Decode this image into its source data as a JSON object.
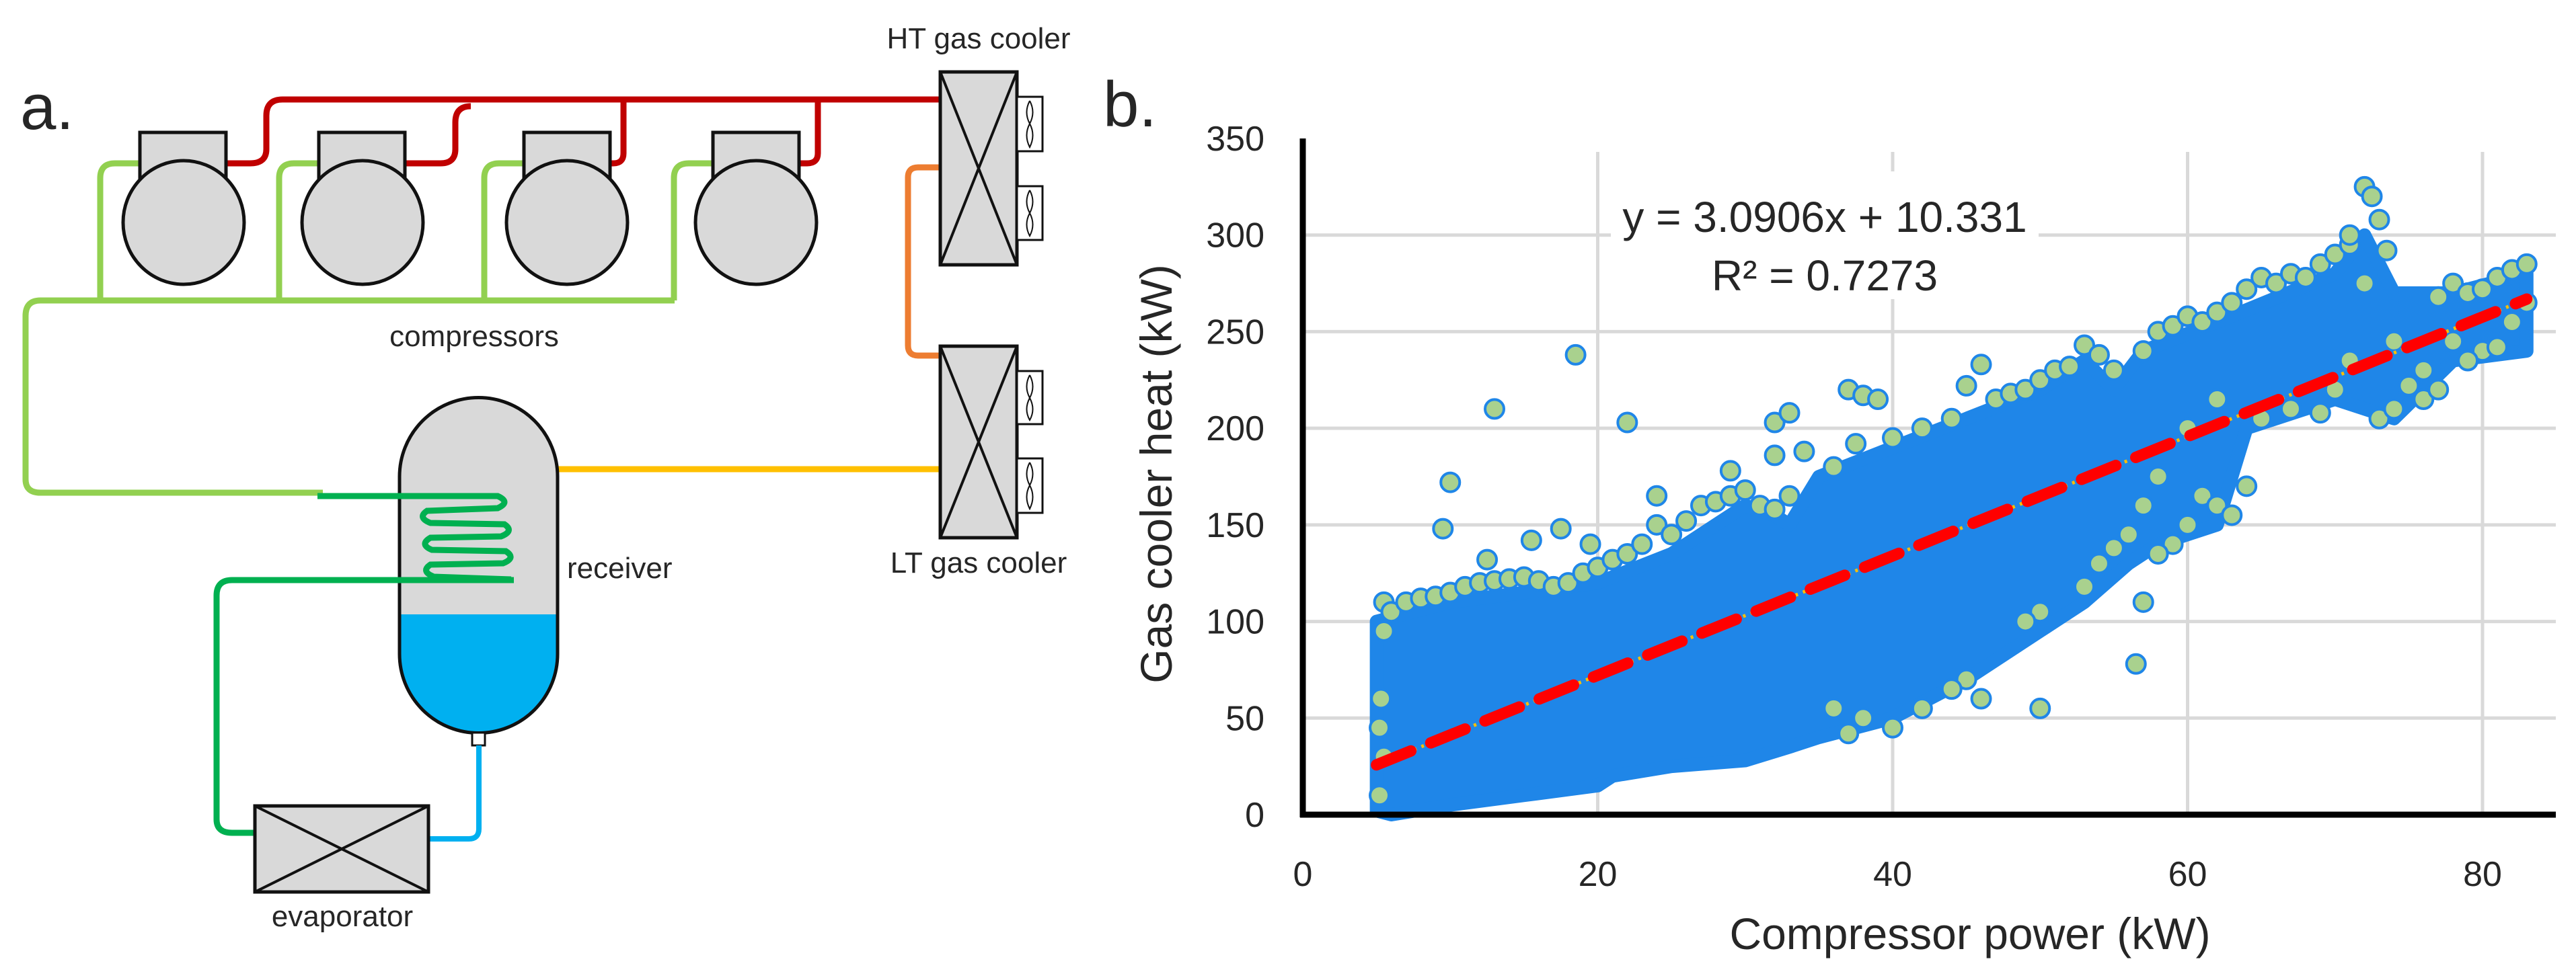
{
  "panel_a": {
    "label": "a.",
    "labels": {
      "ht_gas_cooler": "HT gas cooler",
      "lt_gas_cooler": "LT gas cooler",
      "compressors": "compressors",
      "receiver": "receiver",
      "evaporator": "evaporator"
    },
    "colors": {
      "discharge": "#c00000",
      "suction": "#92d050",
      "internal_hx": "#00b050",
      "intermediate": "#ed7d31",
      "gas_cooler_outlet": "#ffc000",
      "liquid": "#00b0f0",
      "component_fill": "#d9d9d9"
    }
  },
  "panel_b": {
    "label": "b."
  },
  "chart_data": {
    "type": "scatter",
    "xlabel": "Compressor power (kW)",
    "ylabel": "Gas cooler heat (kW)",
    "xlim": [
      0,
      85
    ],
    "ylim": [
      0,
      350
    ],
    "xticks": [
      "0",
      "20",
      "40",
      "60",
      "80"
    ],
    "xtick_values": [
      0,
      20,
      40,
      60,
      80
    ],
    "yticks": [
      "0",
      "50",
      "100",
      "150",
      "200",
      "250",
      "300",
      "350"
    ],
    "ytick_values": [
      0,
      50,
      100,
      150,
      200,
      250,
      300,
      350
    ],
    "grid": true,
    "marker_fill": "#a9d18e",
    "marker_edge": "#1f86e8",
    "trendline": {
      "equation": "y = 3.0906x + 10.331",
      "r_squared": "R² = 0.7273",
      "slope": 3.0906,
      "intercept": 10.331,
      "x_range": [
        5,
        83
      ],
      "color": "#ff0000",
      "dotted_color": "#ffc000"
    },
    "dense_cloud_outline": [
      [
        5,
        2
      ],
      [
        5,
        100
      ],
      [
        10,
        110
      ],
      [
        20,
        120
      ],
      [
        25,
        135
      ],
      [
        30,
        160
      ],
      [
        32,
        155
      ],
      [
        33,
        150
      ],
      [
        35,
        175
      ],
      [
        40,
        190
      ],
      [
        45,
        205
      ],
      [
        50,
        220
      ],
      [
        53,
        235
      ],
      [
        55,
        220
      ],
      [
        57,
        240
      ],
      [
        62,
        255
      ],
      [
        70,
        280
      ],
      [
        72,
        300
      ],
      [
        74,
        270
      ],
      [
        78,
        270
      ],
      [
        83,
        280
      ],
      [
        83,
        240
      ],
      [
        78,
        235
      ],
      [
        74,
        205
      ],
      [
        70,
        215
      ],
      [
        64,
        200
      ],
      [
        62,
        150
      ],
      [
        58,
        140
      ],
      [
        56,
        130
      ],
      [
        53,
        110
      ],
      [
        50,
        95
      ],
      [
        45,
        70
      ],
      [
        40,
        50
      ],
      [
        35,
        40
      ],
      [
        33,
        35
      ],
      [
        30,
        28
      ],
      [
        25,
        25
      ],
      [
        21,
        20
      ],
      [
        20,
        15
      ],
      [
        15,
        10
      ],
      [
        10,
        5
      ],
      [
        6,
        0
      ]
    ],
    "points": [
      [
        5.5,
        110
      ],
      [
        5.5,
        95
      ],
      [
        5.3,
        60
      ],
      [
        5.2,
        45
      ],
      [
        5.5,
        30
      ],
      [
        5.2,
        10
      ],
      [
        6,
        105
      ],
      [
        7,
        110
      ],
      [
        8,
        112
      ],
      [
        9,
        113
      ],
      [
        10,
        115
      ],
      [
        11,
        118
      ],
      [
        12,
        120
      ],
      [
        13,
        121
      ],
      [
        14,
        122
      ],
      [
        15,
        123
      ],
      [
        16,
        121
      ],
      [
        17,
        118
      ],
      [
        18,
        120
      ],
      [
        19,
        125
      ],
      [
        20,
        128
      ],
      [
        21,
        132
      ],
      [
        22,
        135
      ],
      [
        23,
        140
      ],
      [
        24,
        150
      ],
      [
        25,
        145
      ],
      [
        26,
        152
      ],
      [
        27,
        160
      ],
      [
        28,
        162
      ],
      [
        29,
        165
      ],
      [
        30,
        168
      ],
      [
        31,
        160
      ],
      [
        32,
        158
      ],
      [
        33,
        165
      ],
      [
        9.5,
        148
      ],
      [
        10,
        172
      ],
      [
        13,
        210
      ],
      [
        18.5,
        238
      ],
      [
        22,
        203
      ],
      [
        24,
        165
      ],
      [
        12.5,
        132
      ],
      [
        15.5,
        142
      ],
      [
        17.5,
        148
      ],
      [
        19.5,
        140
      ],
      [
        29,
        178
      ],
      [
        32,
        203
      ],
      [
        33,
        208
      ],
      [
        32,
        186
      ],
      [
        34,
        188
      ],
      [
        36,
        180
      ],
      [
        37,
        220
      ],
      [
        38,
        217
      ],
      [
        39,
        215
      ],
      [
        37.5,
        192
      ],
      [
        40,
        195
      ],
      [
        42,
        200
      ],
      [
        44,
        205
      ],
      [
        45,
        222
      ],
      [
        46,
        233
      ],
      [
        47,
        215
      ],
      [
        48,
        218
      ],
      [
        49,
        220
      ],
      [
        50,
        225
      ],
      [
        51,
        230
      ],
      [
        52,
        232
      ],
      [
        53,
        243
      ],
      [
        54,
        238
      ],
      [
        55,
        230
      ],
      [
        50,
        105
      ],
      [
        49,
        100
      ],
      [
        46,
        60
      ],
      [
        45,
        70
      ],
      [
        44,
        65
      ],
      [
        40,
        45
      ],
      [
        37,
        42
      ],
      [
        36,
        55
      ],
      [
        38,
        50
      ],
      [
        50,
        55
      ],
      [
        42,
        55
      ],
      [
        56.5,
        78
      ],
      [
        57,
        110
      ],
      [
        53,
        118
      ],
      [
        54,
        130
      ],
      [
        55,
        138
      ],
      [
        57,
        240
      ],
      [
        58,
        250
      ],
      [
        59,
        253
      ],
      [
        60,
        258
      ],
      [
        61,
        255
      ],
      [
        62,
        260
      ],
      [
        63,
        265
      ],
      [
        64,
        272
      ],
      [
        65,
        278
      ],
      [
        66,
        275
      ],
      [
        67,
        280
      ],
      [
        68,
        278
      ],
      [
        69,
        285
      ],
      [
        70,
        290
      ],
      [
        71,
        295
      ],
      [
        72,
        325
      ],
      [
        72.5,
        320
      ],
      [
        73,
        308
      ],
      [
        73.5,
        292
      ],
      [
        72,
        275
      ],
      [
        71,
        300
      ],
      [
        60,
        150
      ],
      [
        61,
        165
      ],
      [
        62,
        160
      ],
      [
        63,
        155
      ],
      [
        64,
        170
      ],
      [
        60,
        200
      ],
      [
        62,
        215
      ],
      [
        65,
        205
      ],
      [
        67,
        210
      ],
      [
        69,
        208
      ],
      [
        70,
        220
      ],
      [
        71,
        235
      ],
      [
        58,
        175
      ],
      [
        57,
        160
      ],
      [
        56,
        145
      ],
      [
        59,
        140
      ],
      [
        58,
        135
      ],
      [
        73,
        205
      ],
      [
        74,
        210
      ],
      [
        75,
        222
      ],
      [
        76,
        230
      ],
      [
        77,
        268
      ],
      [
        78,
        275
      ],
      [
        79,
        270
      ],
      [
        80,
        272
      ],
      [
        81,
        278
      ],
      [
        82,
        282
      ],
      [
        83,
        285
      ],
      [
        80,
        240
      ],
      [
        81,
        242
      ],
      [
        79,
        235
      ],
      [
        78,
        245
      ],
      [
        82,
        255
      ],
      [
        83,
        265
      ],
      [
        76,
        215
      ],
      [
        77,
        220
      ],
      [
        74,
        245
      ]
    ]
  }
}
